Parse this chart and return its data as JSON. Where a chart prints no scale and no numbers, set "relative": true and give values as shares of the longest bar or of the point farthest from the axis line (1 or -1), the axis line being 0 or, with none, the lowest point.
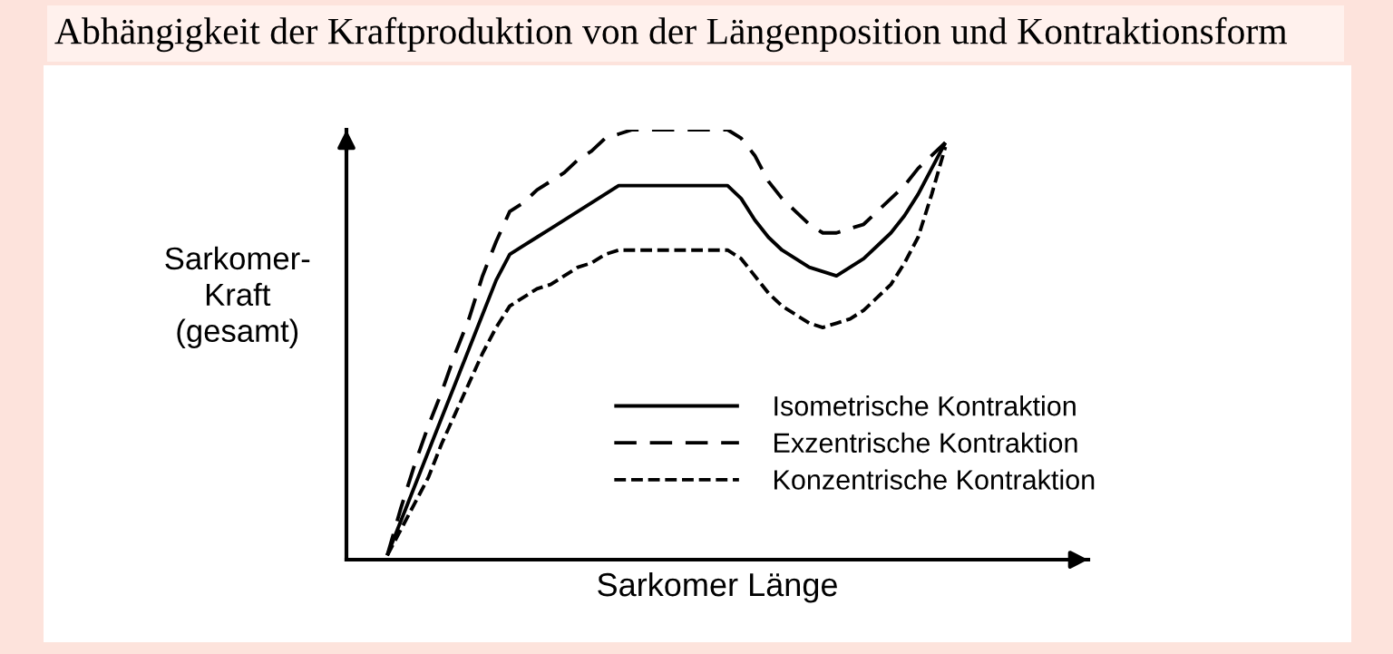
{
  "chart_data": {
    "type": "line",
    "title": "Abhängigkeit der Kraftproduktion von der Längenposition und Kontraktionsform",
    "xlabel": "Sarkomer Länge",
    "ylabel": "Sarkomer-\nKraft\n(gesamt)",
    "relative": true,
    "legend": "lower right",
    "categories": [
      null,
      null,
      null,
      null,
      null,
      null,
      null,
      null,
      null,
      null,
      null,
      null,
      null,
      null,
      null,
      null,
      null,
      null,
      null,
      null,
      null,
      null,
      null,
      null,
      null,
      null,
      null,
      null,
      null,
      null,
      null,
      null,
      null,
      null,
      null,
      null,
      null,
      null,
      null,
      null,
      null,
      null
    ],
    "series": [
      {
        "name": "Isometrische Kontraktion",
        "color": "#000000",
        "line_style": "solid",
        "values": [
          0.01,
          0.09,
          0.17,
          0.25,
          0.33,
          0.41,
          0.49,
          0.57,
          0.65,
          0.71,
          0.73,
          0.75,
          0.77,
          0.79,
          0.81,
          0.83,
          0.85,
          0.87,
          0.87,
          0.87,
          0.87,
          0.87,
          0.87,
          0.87,
          0.87,
          0.87,
          0.84,
          0.79,
          0.75,
          0.72,
          0.7,
          0.68,
          0.67,
          0.66,
          0.68,
          0.7,
          0.73,
          0.76,
          0.8,
          0.85,
          0.91,
          0.97
        ]
      },
      {
        "name": "Exzentrische Kontraktion",
        "color": "#000000",
        "line_style": "dashed",
        "values": [
          0.01,
          0.12,
          0.22,
          0.31,
          0.39,
          0.48,
          0.56,
          0.66,
          0.74,
          0.81,
          0.83,
          0.86,
          0.88,
          0.9,
          0.93,
          0.95,
          0.98,
          0.99,
          1.0,
          1.0,
          1.0,
          1.0,
          1.0,
          1.0,
          1.0,
          1.0,
          0.98,
          0.94,
          0.88,
          0.84,
          0.81,
          0.78,
          0.76,
          0.76,
          0.77,
          0.78,
          0.81,
          0.84,
          0.87,
          0.91,
          0.94,
          0.97
        ]
      },
      {
        "name": "Konzentrische Kontraktion",
        "color": "#000000",
        "line_style": "dashed",
        "values": [
          0.01,
          0.07,
          0.13,
          0.19,
          0.27,
          0.34,
          0.41,
          0.48,
          0.54,
          0.59,
          0.61,
          0.63,
          0.64,
          0.66,
          0.68,
          0.69,
          0.71,
          0.72,
          0.72,
          0.72,
          0.72,
          0.72,
          0.72,
          0.72,
          0.72,
          0.72,
          0.7,
          0.66,
          0.62,
          0.59,
          0.57,
          0.55,
          0.54,
          0.55,
          0.56,
          0.58,
          0.61,
          0.64,
          0.69,
          0.75,
          0.85,
          0.96
        ]
      }
    ]
  }
}
